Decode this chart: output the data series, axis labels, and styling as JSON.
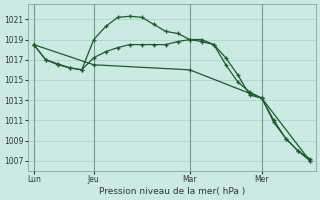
{
  "background_color": "#cceae4",
  "grid_color": "#aacccc",
  "line_color": "#1a5c2a",
  "spine_color": "#7a9a90",
  "title": "Pression niveau de la mer( hPa )",
  "ylim": [
    1006.0,
    1022.5
  ],
  "yticks": [
    1007,
    1009,
    1011,
    1013,
    1015,
    1017,
    1019,
    1021
  ],
  "xtick_labels": [
    "Lun",
    "Jeu",
    "Mar",
    "Mer"
  ],
  "xtick_positions": [
    0,
    5,
    13,
    19
  ],
  "xlim": [
    -0.5,
    23.5
  ],
  "series2_x": [
    0,
    1,
    2,
    3,
    4,
    5,
    6,
    7,
    8,
    9,
    10,
    11,
    12,
    13,
    14,
    15,
    16,
    17,
    18,
    19,
    20,
    21,
    22,
    23
  ],
  "series2_y": [
    1018.5,
    1017.0,
    1016.6,
    1016.2,
    1016.0,
    1019.0,
    1020.3,
    1021.2,
    1021.3,
    1021.2,
    1020.5,
    1019.8,
    1019.6,
    1019.0,
    1018.8,
    1018.5,
    1016.5,
    1014.8,
    1013.8,
    1013.2,
    1011.0,
    1009.2,
    1008.0,
    1007.0
  ],
  "series1_x": [
    0,
    1,
    2,
    3,
    4,
    5,
    6,
    7,
    8,
    9,
    10,
    11,
    12,
    13,
    14,
    15,
    16,
    17,
    18,
    19,
    20,
    21,
    22,
    23
  ],
  "series1_y": [
    1018.5,
    1017.0,
    1016.5,
    1016.2,
    1016.0,
    1017.2,
    1017.8,
    1018.2,
    1018.5,
    1018.5,
    1018.5,
    1018.5,
    1018.8,
    1019.0,
    1019.0,
    1018.5,
    1017.2,
    1015.5,
    1013.5,
    1013.2,
    1010.8,
    1009.2,
    1008.0,
    1007.2
  ],
  "series3_x": [
    0,
    5,
    13,
    19,
    23
  ],
  "series3_y": [
    1018.5,
    1016.5,
    1016.0,
    1013.2,
    1007.0
  ]
}
